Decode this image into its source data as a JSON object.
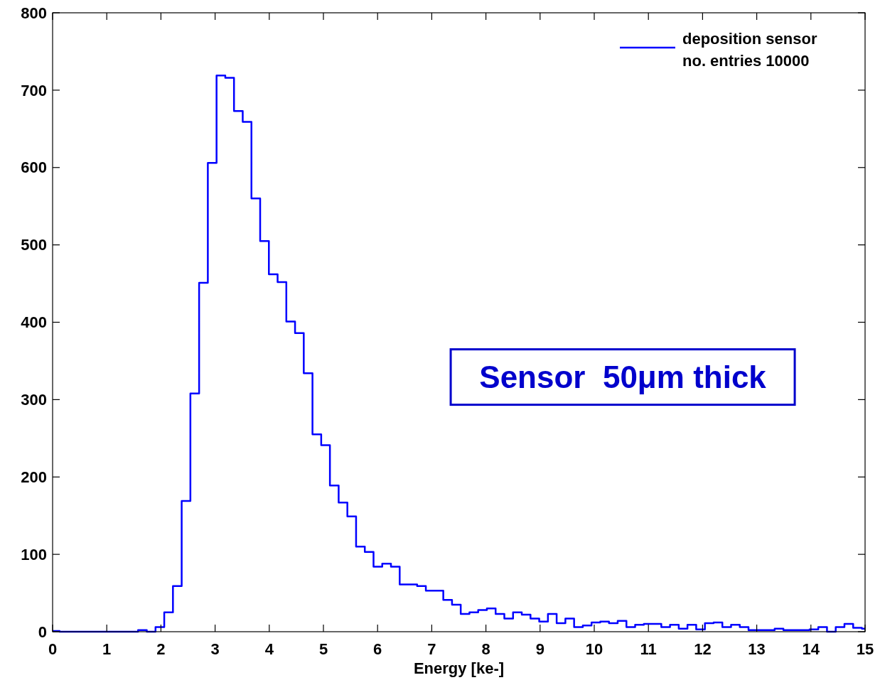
{
  "chart_data": {
    "type": "histogram",
    "xlabel": "Energy [ke-]",
    "xlim": [
      0,
      15
    ],
    "xticks": [
      0,
      1,
      2,
      3,
      4,
      5,
      6,
      7,
      8,
      9,
      10,
      11,
      12,
      13,
      14,
      15
    ],
    "ylim": [
      0,
      800
    ],
    "yticks": [
      0,
      100,
      200,
      300,
      400,
      500,
      600,
      700,
      800
    ],
    "grid": false,
    "legend": "top right",
    "annotations": [
      "Sensor  50μm thick"
    ],
    "bins": [
      0,
      0.129,
      0.29,
      0.451,
      0.612,
      0.773,
      0.934,
      1.095,
      1.256,
      1.417,
      1.578,
      1.739,
      1.9,
      2.061,
      2.222,
      2.383,
      2.544,
      2.705,
      2.866,
      3.027,
      3.188,
      3.349,
      3.51,
      3.671,
      3.832,
      3.993,
      4.154,
      4.315,
      4.476,
      4.637,
      4.798,
      4.959,
      5.12,
      5.281,
      5.442,
      5.603,
      5.764,
      5.925,
      6.086,
      6.247,
      6.408,
      6.569,
      6.73,
      6.891,
      7.052,
      7.213,
      7.374,
      7.535,
      7.696,
      7.857,
      8.018,
      8.179,
      8.34,
      8.501,
      8.662,
      8.823,
      8.984,
      9.145,
      9.306,
      9.467,
      9.628,
      9.789,
      9.95,
      10.111,
      10.272,
      10.433,
      10.594,
      10.755,
      10.916,
      11.077,
      11.238,
      11.399,
      11.56,
      11.721,
      11.882,
      12.043,
      12.204,
      12.365,
      12.526,
      12.687,
      12.848,
      13.009,
      13.17,
      13.331,
      13.492,
      13.653,
      13.814,
      13.975,
      14.136,
      14.297,
      14.458,
      14.619,
      14.78,
      14.941,
      15
    ],
    "series": [
      {
        "name": "deposition sensor\nno. entries 10000",
        "color": "#0000ff",
        "values": [
          1,
          0,
          0,
          0,
          0,
          0,
          0,
          0,
          0,
          0,
          2,
          0,
          6,
          25,
          59,
          169,
          308,
          451,
          606,
          719,
          716,
          673,
          659,
          560,
          505,
          462,
          452,
          401,
          386,
          334,
          255,
          241,
          189,
          167,
          149,
          110,
          103,
          84,
          88,
          84,
          61,
          61,
          59,
          53,
          53,
          41,
          35,
          23,
          25,
          28,
          30,
          23,
          17,
          25,
          22,
          17,
          13,
          23,
          11,
          17,
          6,
          8,
          12,
          13,
          11,
          14,
          6,
          9,
          10,
          10,
          6,
          9,
          4,
          9,
          3,
          11,
          12,
          6,
          9,
          6,
          2,
          2,
          2,
          4,
          2,
          2,
          2,
          3,
          6,
          0,
          6,
          10,
          5,
          4
        ]
      }
    ]
  }
}
